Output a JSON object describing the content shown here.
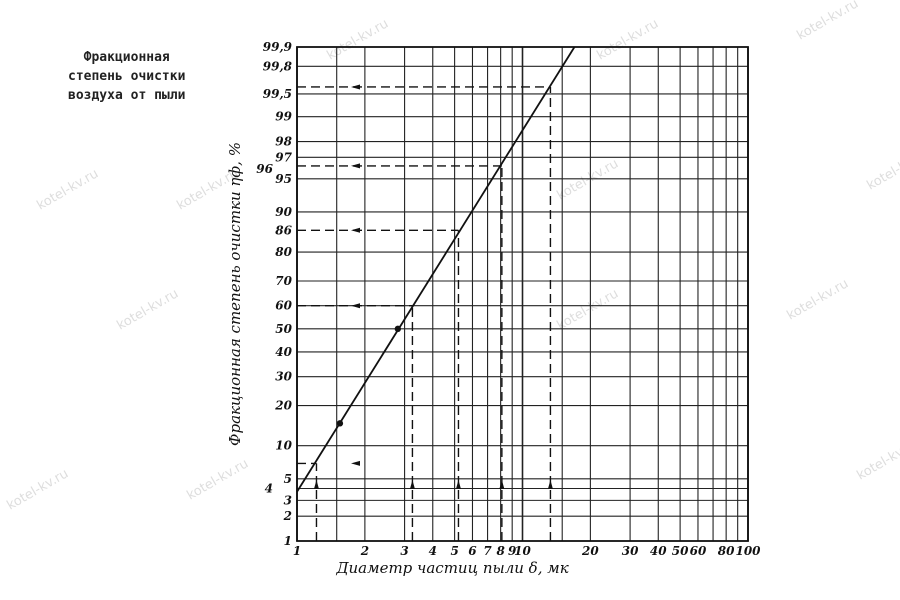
{
  "title_lines": [
    "Фракционная",
    "степень очистки",
    "воздуха от пыли"
  ],
  "watermark": "kotel-kv.ru",
  "chart_data": {
    "type": "line",
    "title": "Фракционная степень очистки воздуха от пыли",
    "xlabel": "Диаметр частиц пыли δ, мк",
    "ylabel": "Фракционная степень очистки ηф, %",
    "x_scale": "log",
    "y_scale": "probability",
    "xlim": [
      1,
      100
    ],
    "ylim": [
      1,
      99.9
    ],
    "grid": true,
    "x_ticks": [
      1,
      2,
      3,
      4,
      5,
      6,
      7,
      8,
      9,
      10,
      20,
      30,
      40,
      50,
      60,
      80,
      100
    ],
    "x_tick_labels": [
      "1",
      "2",
      "3",
      "4",
      "5",
      "6",
      "7",
      "8",
      "9",
      "10",
      "20",
      "30",
      "40",
      "50",
      "60",
      "80",
      "100"
    ],
    "x_grid": [
      1,
      1.5,
      2,
      3,
      4,
      5,
      6,
      7,
      8,
      9,
      10,
      15,
      20,
      30,
      40,
      50,
      60,
      70,
      80,
      90,
      100
    ],
    "y_ticks": [
      1,
      2,
      3,
      4,
      5,
      10,
      20,
      30,
      40,
      50,
      60,
      70,
      80,
      86,
      90,
      95,
      96,
      97,
      98,
      99,
      99.5,
      99.8,
      99.9
    ],
    "y_tick_labels": [
      "1",
      "2",
      "3",
      "4",
      "5",
      "10",
      "20",
      "30",
      "40",
      "50",
      "60",
      "70",
      "80",
      "86",
      "90",
      "95",
      "96",
      "97",
      "98",
      "99",
      "99,5",
      "99,8",
      "99,9"
    ],
    "y_grid": [
      1,
      2,
      3,
      4,
      5,
      10,
      20,
      30,
      40,
      50,
      60,
      70,
      80,
      90,
      95,
      97,
      98,
      99,
      99.5,
      99.8,
      99.9
    ],
    "series": [
      {
        "x": [
          1,
          17
        ],
        "y": [
          3.7,
          99.9
        ],
        "style": "solid line"
      }
    ],
    "marked_points": [
      {
        "x": 1.55,
        "y": 15
      },
      {
        "x": 2.8,
        "y": 50
      }
    ],
    "reading_lines": [
      {
        "x": 1.22,
        "y": 7
      },
      {
        "x": 3.25,
        "y": 60
      },
      {
        "x": 5.2,
        "y": 86
      },
      {
        "x": 8.1,
        "y": 96.3
      },
      {
        "x": 13.3,
        "y": 99.6
      }
    ],
    "colors": {
      "ink": "#111111",
      "background": "#ffffff"
    }
  }
}
